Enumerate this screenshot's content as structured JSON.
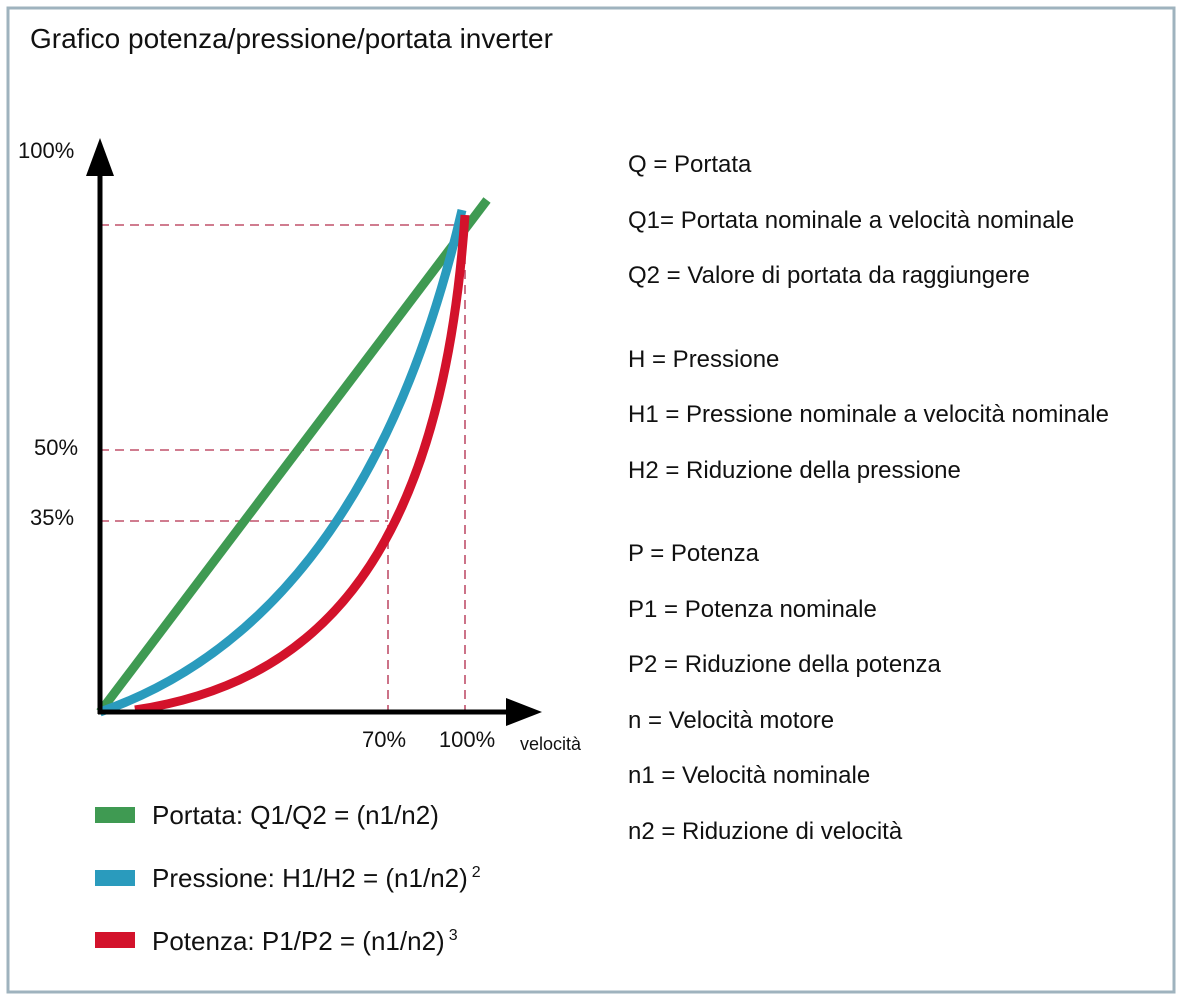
{
  "title": "Grafico potenza/pressione/portata inverter",
  "axes": {
    "y_labels": [
      "100%",
      "50%",
      "35%"
    ],
    "x_labels": [
      "70%",
      "100%"
    ],
    "x_axis_label": "velocità"
  },
  "legend": [
    {
      "label": "Portata:  Q1/Q2 = (n1/n2)"
    },
    {
      "label": "Pressione: H1/H2 = (n1/n2)",
      "exponent": "2"
    },
    {
      "label": "Potenza: P1/P2 = (n1/n2)",
      "exponent": "3"
    }
  ],
  "definitions": [
    "Q = Portata",
    "Q1= Portata nominale a velocità nominale",
    "Q2 = Valore di portata da raggiungere",
    "H = Pressione",
    "H1 = Pressione nominale a velocità nominale",
    "H2 = Riduzione della pressione",
    "P = Potenza",
    "P1 = Potenza nominale",
    "P2 = Riduzione della potenza",
    "n = Velocità motore",
    "n1 = Velocità nominale",
    "n2 = Riduzione di velocità"
  ]
}
